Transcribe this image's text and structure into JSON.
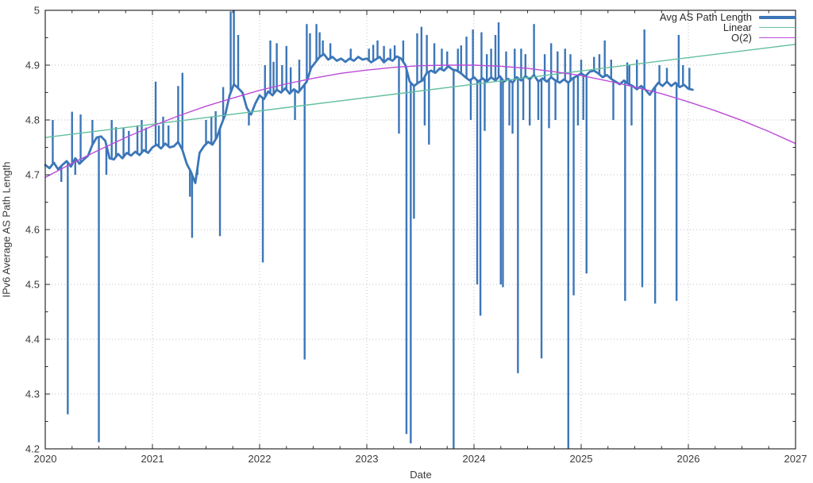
{
  "chart_data": {
    "type": "line",
    "title": "",
    "xlabel": "Date",
    "ylabel": "IPv6 Average AS Path Length",
    "xlim": [
      2020,
      2027
    ],
    "ylim": [
      4.2,
      5.0
    ],
    "grid": "dotted-major",
    "x_ticks": {
      "values": [
        2020,
        2021,
        2022,
        2023,
        2024,
        2025,
        2026,
        2027
      ],
      "labels": [
        "2020",
        "2021",
        "2022",
        "2023",
        "2024",
        "2025",
        "2026",
        "2027"
      ],
      "minor_step": 0.25
    },
    "y_ticks": {
      "values": [
        4.2,
        4.3,
        4.4,
        4.5,
        4.6,
        4.7,
        4.8,
        4.9,
        5.0
      ],
      "labels": [
        "4.2",
        "4.3",
        "4.4",
        "4.5",
        "4.6",
        "4.7",
        "4.8",
        "4.9",
        "5"
      ],
      "minor_step": 0.05
    },
    "colors": {
      "background": "#ffffff",
      "border": "#2b2b2b",
      "grid": "#bfbfbf",
      "text": "#3a3a3a",
      "avg": "#3b76b8",
      "linear": "#62bf9e",
      "o2": "#bb4bd8"
    },
    "legend": {
      "position": "top-right",
      "entries": [
        {
          "label": "Avg AS Path Length",
          "color": "#3b76b8",
          "thick": true
        },
        {
          "label": "Linear",
          "color": "#62bf9e",
          "thick": false
        },
        {
          "label": "O(2)",
          "color": "#bb4bd8",
          "thick": false
        }
      ]
    },
    "series": [
      {
        "name": "Avg AS Path Length",
        "color": "#3b76b8",
        "width": 2.8,
        "x0": 2020,
        "dx": 0.04,
        "values": [
          4.718,
          4.712,
          4.722,
          4.71,
          4.718,
          4.725,
          4.715,
          4.73,
          4.72,
          4.728,
          4.735,
          4.755,
          4.768,
          4.77,
          4.762,
          4.73,
          4.728,
          4.738,
          4.73,
          4.74,
          4.735,
          4.742,
          4.736,
          4.745,
          4.74,
          4.75,
          4.755,
          4.748,
          4.757,
          4.75,
          4.752,
          4.76,
          4.745,
          4.72,
          4.705,
          4.685,
          4.74,
          4.752,
          4.76,
          4.755,
          4.768,
          4.79,
          4.81,
          4.845,
          4.865,
          4.858,
          4.85,
          4.822,
          4.81,
          4.83,
          4.845,
          4.838,
          4.852,
          4.845,
          4.855,
          4.85,
          4.858,
          4.848,
          4.856,
          4.85,
          4.86,
          4.87,
          4.895,
          4.905,
          4.915,
          4.92,
          4.91,
          4.915,
          4.908,
          4.912,
          4.906,
          4.912,
          4.908,
          4.915,
          4.91,
          4.912,
          4.905,
          4.91,
          4.915,
          4.905,
          4.912,
          4.908,
          4.916,
          4.912,
          4.9,
          4.87,
          4.862,
          4.868,
          4.872,
          4.886,
          4.89,
          4.886,
          4.894,
          4.89,
          4.898,
          4.892,
          4.89,
          4.885,
          4.878,
          4.872,
          4.878,
          4.87,
          4.876,
          4.87,
          4.878,
          4.872,
          4.88,
          4.87,
          4.875,
          4.868,
          4.878,
          4.872,
          4.88,
          4.874,
          4.882,
          4.87,
          4.876,
          4.87,
          4.878,
          4.872,
          4.868,
          4.874,
          4.868,
          4.876,
          4.88,
          4.885,
          4.88,
          4.888,
          4.89,
          4.885,
          4.878,
          4.882,
          4.875,
          4.87,
          4.865,
          4.872,
          4.866,
          4.862,
          4.856,
          4.862,
          4.855,
          4.846,
          4.858,
          4.868,
          4.862,
          4.87,
          4.862,
          4.868,
          4.86,
          4.864,
          4.857,
          4.855
        ],
        "spikes": [
          [
            2020.07,
            4.8
          ],
          [
            2020.15,
            4.687
          ],
          [
            2020.21,
            4.263
          ],
          [
            2020.25,
            4.815
          ],
          [
            2020.28,
            4.7
          ],
          [
            2020.33,
            4.81
          ],
          [
            2020.44,
            4.8
          ],
          [
            2020.5,
            4.212
          ],
          [
            2020.57,
            4.7
          ],
          [
            2020.62,
            4.8
          ],
          [
            2020.66,
            4.787
          ],
          [
            2020.73,
            4.785
          ],
          [
            2020.78,
            4.78
          ],
          [
            2020.86,
            4.79
          ],
          [
            2020.9,
            4.8
          ],
          [
            2020.94,
            4.786
          ],
          [
            2021.03,
            4.87
          ],
          [
            2021.06,
            4.79
          ],
          [
            2021.1,
            4.806
          ],
          [
            2021.15,
            4.79
          ],
          [
            2021.24,
            4.862
          ],
          [
            2021.28,
            4.886
          ],
          [
            2021.35,
            4.66
          ],
          [
            2021.37,
            4.585
          ],
          [
            2021.42,
            4.7
          ],
          [
            2021.5,
            4.8
          ],
          [
            2021.55,
            4.806
          ],
          [
            2021.59,
            4.816
          ],
          [
            2021.63,
            4.588
          ],
          [
            2021.66,
            4.86
          ],
          [
            2021.73,
            4.998
          ],
          [
            2021.76,
            5.0
          ],
          [
            2021.8,
            4.955
          ],
          [
            2021.9,
            4.79
          ],
          [
            2022.03,
            4.54
          ],
          [
            2022.05,
            4.9
          ],
          [
            2022.1,
            4.945
          ],
          [
            2022.13,
            4.906
          ],
          [
            2022.16,
            4.94
          ],
          [
            2022.21,
            4.9
          ],
          [
            2022.25,
            4.935
          ],
          [
            2022.29,
            4.896
          ],
          [
            2022.33,
            4.8
          ],
          [
            2022.37,
            4.91
          ],
          [
            2022.42,
            4.363
          ],
          [
            2022.44,
            4.975
          ],
          [
            2022.47,
            4.958
          ],
          [
            2022.53,
            4.975
          ],
          [
            2022.56,
            4.96
          ],
          [
            2022.59,
            4.945
          ],
          [
            2022.66,
            4.94
          ],
          [
            2022.85,
            4.93
          ],
          [
            2023.02,
            4.93
          ],
          [
            2023.06,
            4.937
          ],
          [
            2023.1,
            4.945
          ],
          [
            2023.16,
            4.935
          ],
          [
            2023.22,
            4.93
          ],
          [
            2023.26,
            4.936
          ],
          [
            2023.3,
            4.775
          ],
          [
            2023.34,
            4.945
          ],
          [
            2023.37,
            4.227
          ],
          [
            2023.41,
            4.21
          ],
          [
            2023.44,
            4.62
          ],
          [
            2023.47,
            4.958
          ],
          [
            2023.51,
            4.97
          ],
          [
            2023.54,
            4.79
          ],
          [
            2023.56,
            4.955
          ],
          [
            2023.58,
            4.755
          ],
          [
            2023.63,
            4.94
          ],
          [
            2023.7,
            4.93
          ],
          [
            2023.75,
            4.925
          ],
          [
            2023.81,
            4.2
          ],
          [
            2023.85,
            4.93
          ],
          [
            2023.88,
            4.936
          ],
          [
            2023.93,
            4.952
          ],
          [
            2023.97,
            4.8
          ],
          [
            2023.99,
            4.965
          ],
          [
            2024.03,
            4.5
          ],
          [
            2024.06,
            4.443
          ],
          [
            2024.07,
            4.96
          ],
          [
            2024.1,
            4.78
          ],
          [
            2024.12,
            4.92
          ],
          [
            2024.16,
            4.93
          ],
          [
            2024.2,
            4.955
          ],
          [
            2024.23,
            4.978
          ],
          [
            2024.25,
            4.5
          ],
          [
            2024.27,
            4.495
          ],
          [
            2024.3,
            4.925
          ],
          [
            2024.33,
            4.79
          ],
          [
            2024.36,
            4.775
          ],
          [
            2024.38,
            4.93
          ],
          [
            2024.41,
            4.338
          ],
          [
            2024.44,
            4.93
          ],
          [
            2024.46,
            4.8
          ],
          [
            2024.48,
            4.92
          ],
          [
            2024.52,
            4.79
          ],
          [
            2024.56,
            4.975
          ],
          [
            2024.6,
            4.8
          ],
          [
            2024.63,
            4.365
          ],
          [
            2024.66,
            4.92
          ],
          [
            2024.7,
            4.785
          ],
          [
            2024.72,
            4.94
          ],
          [
            2024.76,
            4.8
          ],
          [
            2024.78,
            4.925
          ],
          [
            2024.85,
            4.93
          ],
          [
            2024.88,
            4.2
          ],
          [
            2024.9,
            4.92
          ],
          [
            2024.93,
            4.48
          ],
          [
            2024.97,
            4.79
          ],
          [
            2025.0,
            4.91
          ],
          [
            2025.02,
            4.8
          ],
          [
            2025.05,
            4.52
          ],
          [
            2025.12,
            4.915
          ],
          [
            2025.17,
            4.92
          ],
          [
            2025.22,
            4.945
          ],
          [
            2025.28,
            4.91
          ],
          [
            2025.3,
            4.8
          ],
          [
            2025.41,
            4.47
          ],
          [
            2025.43,
            4.905
          ],
          [
            2025.45,
            4.9
          ],
          [
            2025.47,
            4.79
          ],
          [
            2025.52,
            4.91
          ],
          [
            2025.57,
            4.495
          ],
          [
            2025.59,
            4.965
          ],
          [
            2025.69,
            4.465
          ],
          [
            2025.73,
            4.9
          ],
          [
            2025.8,
            4.895
          ],
          [
            2025.89,
            4.47
          ],
          [
            2025.91,
            4.955
          ],
          [
            2025.95,
            4.9
          ],
          [
            2026.01,
            4.895
          ]
        ]
      },
      {
        "name": "Linear",
        "color": "#62bf9e",
        "width": 1.4,
        "x0": 2020,
        "dx": 7,
        "values": [
          4.768,
          4.938
        ]
      },
      {
        "name": "O(2)",
        "color": "#bb4bd8",
        "width": 1.4,
        "x0": 2020,
        "dx": 0.25,
        "values": [
          4.695,
          4.721,
          4.745,
          4.768,
          4.789,
          4.808,
          4.825,
          4.84,
          4.854,
          4.866,
          4.876,
          4.885,
          4.891,
          4.896,
          4.899,
          4.9,
          4.9,
          4.898,
          4.894,
          4.888,
          4.881,
          4.871,
          4.86,
          4.848,
          4.833,
          4.817,
          4.799,
          4.779,
          4.757
        ]
      }
    ]
  }
}
